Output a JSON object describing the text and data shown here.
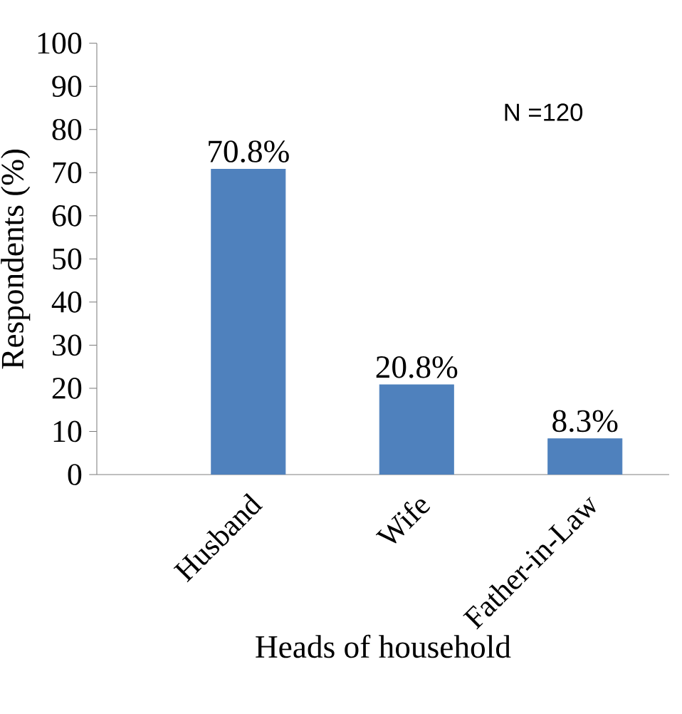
{
  "chart_data": {
    "type": "bar",
    "xlabel": "Heads of household",
    "ylabel": "Respondents (%)",
    "categories": [
      "Husband",
      "Wife",
      "Father-in-Law"
    ],
    "values": [
      70.8,
      20.8,
      8.3
    ],
    "value_labels": [
      "70.8%",
      "20.8%",
      "8.3%"
    ],
    "color": "#4f81bd",
    "ylim": [
      0,
      100
    ],
    "yticks": [
      0,
      10,
      20,
      30,
      40,
      50,
      60,
      70,
      80,
      90,
      100
    ],
    "annotations": [
      "N =120"
    ]
  }
}
